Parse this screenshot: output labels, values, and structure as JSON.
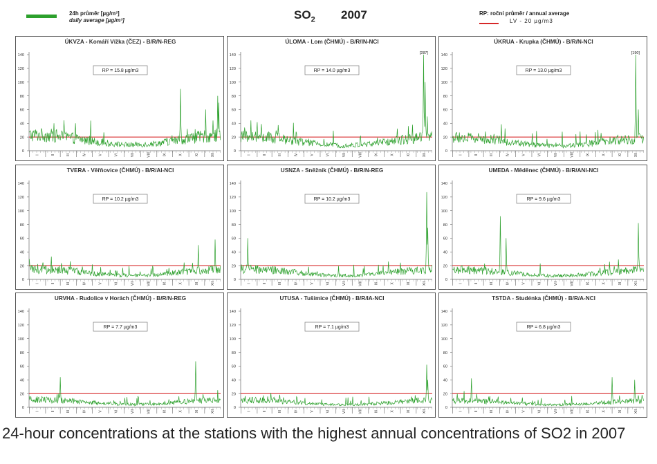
{
  "header": {
    "legend_daily_cz": "24h průměr [µg/m³]",
    "legend_daily_en": "daily average [µg/m³]",
    "title_main": "SO",
    "title_sub": "2",
    "year": "2007",
    "legend_rp": "RP: roční průměr / annual average",
    "legend_lv": "LV - 20 µg/m3"
  },
  "colors": {
    "series": "#2ca02c",
    "limit": "#d62728",
    "frame": "#555555"
  },
  "axis": {
    "y_ticks": [
      "0",
      "20",
      "40",
      "60",
      "80",
      "100",
      "120",
      "140"
    ],
    "months": [
      "I",
      "II",
      "III",
      "IV",
      "V",
      "VI",
      "VII",
      "VIII",
      "IX",
      "X",
      "XI",
      "XII"
    ]
  },
  "chart_data": [
    {
      "type": "line",
      "title": "ÚKVZA - Komáří Vížka (ČEZ) - B/R/N-REG",
      "rp_label": "RP = 15.8 µg/m3",
      "annual_mean": 15.8,
      "limit": 20,
      "ylim": [
        0,
        140
      ],
      "x": "day of year 2007",
      "peak_label": "",
      "peaks": [
        {
          "day": 289,
          "value": 90
        },
        {
          "day": 337,
          "value": 60
        },
        {
          "day": 360,
          "value": 80
        },
        {
          "day": 362,
          "value": 70
        }
      ],
      "series_name": "24h průměr"
    },
    {
      "type": "line",
      "title": "ÚLOMA - Lom (ČHMÚ) - B/R/IN-NCI",
      "rp_label": "RP = 14.0 µg/m3",
      "annual_mean": 14.0,
      "limit": 20,
      "ylim": [
        0,
        140
      ],
      "x": "day of year 2007",
      "peak_label": "[287]",
      "peaks": [
        {
          "day": 349,
          "value": 140
        },
        {
          "day": 352,
          "value": 100
        },
        {
          "day": 356,
          "value": 50
        }
      ],
      "series_name": "24h průměr"
    },
    {
      "type": "line",
      "title": "ÚKRUA - Krupka (ČHMÚ) - B/R/N-NCI",
      "rp_label": "RP = 13.0 µg/m3",
      "annual_mean": 13.0,
      "limit": 20,
      "ylim": [
        0,
        140
      ],
      "x": "day of year 2007",
      "peak_label": "[190]",
      "peaks": [
        {
          "day": 350,
          "value": 140
        },
        {
          "day": 355,
          "value": 60
        }
      ],
      "series_name": "24h průměr"
    },
    {
      "type": "line",
      "title": "TVERA - Věřňovice (ČHMÚ) - B/R/AI-NCI",
      "rp_label": "RP = 10.2 µg/m3",
      "annual_mean": 10.2,
      "limit": 20,
      "ylim": [
        0,
        140
      ],
      "x": "day of year 2007",
      "peak_label": "",
      "peaks": [
        {
          "day": 323,
          "value": 50
        },
        {
          "day": 355,
          "value": 58
        }
      ],
      "series_name": "24h průměr"
    },
    {
      "type": "line",
      "title": "USNZA - Sněžník (ČHMÚ) - B/R/N-REG",
      "rp_label": "RP = 10.2 µg/m3",
      "annual_mean": 10.2,
      "limit": 20,
      "ylim": [
        0,
        140
      ],
      "x": "day of year 2007",
      "peak_label": "",
      "peaks": [
        {
          "day": 14,
          "value": 60
        },
        {
          "day": 355,
          "value": 127
        },
        {
          "day": 357,
          "value": 75
        }
      ],
      "series_name": "24h průměr"
    },
    {
      "type": "line",
      "title": "UMEDA - Měděnec (ČHMÚ) - B/R/ANI-NCI",
      "rp_label": "RP = 9.6 µg/m3",
      "annual_mean": 9.6,
      "limit": 20,
      "ylim": [
        0,
        140
      ],
      "x": "day of year 2007",
      "peak_label": "",
      "peaks": [
        {
          "day": 92,
          "value": 92
        },
        {
          "day": 103,
          "value": 60
        },
        {
          "day": 355,
          "value": 82
        }
      ],
      "series_name": "24h průměr"
    },
    {
      "type": "line",
      "title": "URVHA - Rudolice v Horách (ČHMÚ) - B/R/N-REG",
      "rp_label": "RP = 7.7 µg/m3",
      "annual_mean": 7.7,
      "limit": 20,
      "ylim": [
        0,
        140
      ],
      "x": "day of year 2007",
      "peak_label": "",
      "peaks": [
        {
          "day": 318,
          "value": 67
        },
        {
          "day": 60,
          "value": 44
        }
      ],
      "series_name": "24h průměr"
    },
    {
      "type": "line",
      "title": "UTUSA - Tušimice (ČHMÚ) - B/R/IA-NCI",
      "rp_label": "RP = 7.1 µg/m3",
      "annual_mean": 7.1,
      "limit": 20,
      "ylim": [
        0,
        140
      ],
      "x": "day of year 2007",
      "peak_label": "",
      "peaks": [
        {
          "day": 355,
          "value": 62
        },
        {
          "day": 357,
          "value": 40
        }
      ],
      "series_name": "24h průměr"
    },
    {
      "type": "line",
      "title": "TSTDA - Studénka (ČHMÚ) - B/R/A-NCI",
      "rp_label": "RP = 6.8 µg/m3",
      "annual_mean": 6.8,
      "limit": 20,
      "ylim": [
        0,
        140
      ],
      "x": "day of year 2007",
      "peak_label": "",
      "peaks": [
        {
          "day": 37,
          "value": 42
        },
        {
          "day": 305,
          "value": 44
        },
        {
          "day": 348,
          "value": 40
        }
      ],
      "series_name": "24h průměr"
    }
  ],
  "caption": "24-hour concentrations at the stations with the highest annual concentrations of SO2 in 2007"
}
